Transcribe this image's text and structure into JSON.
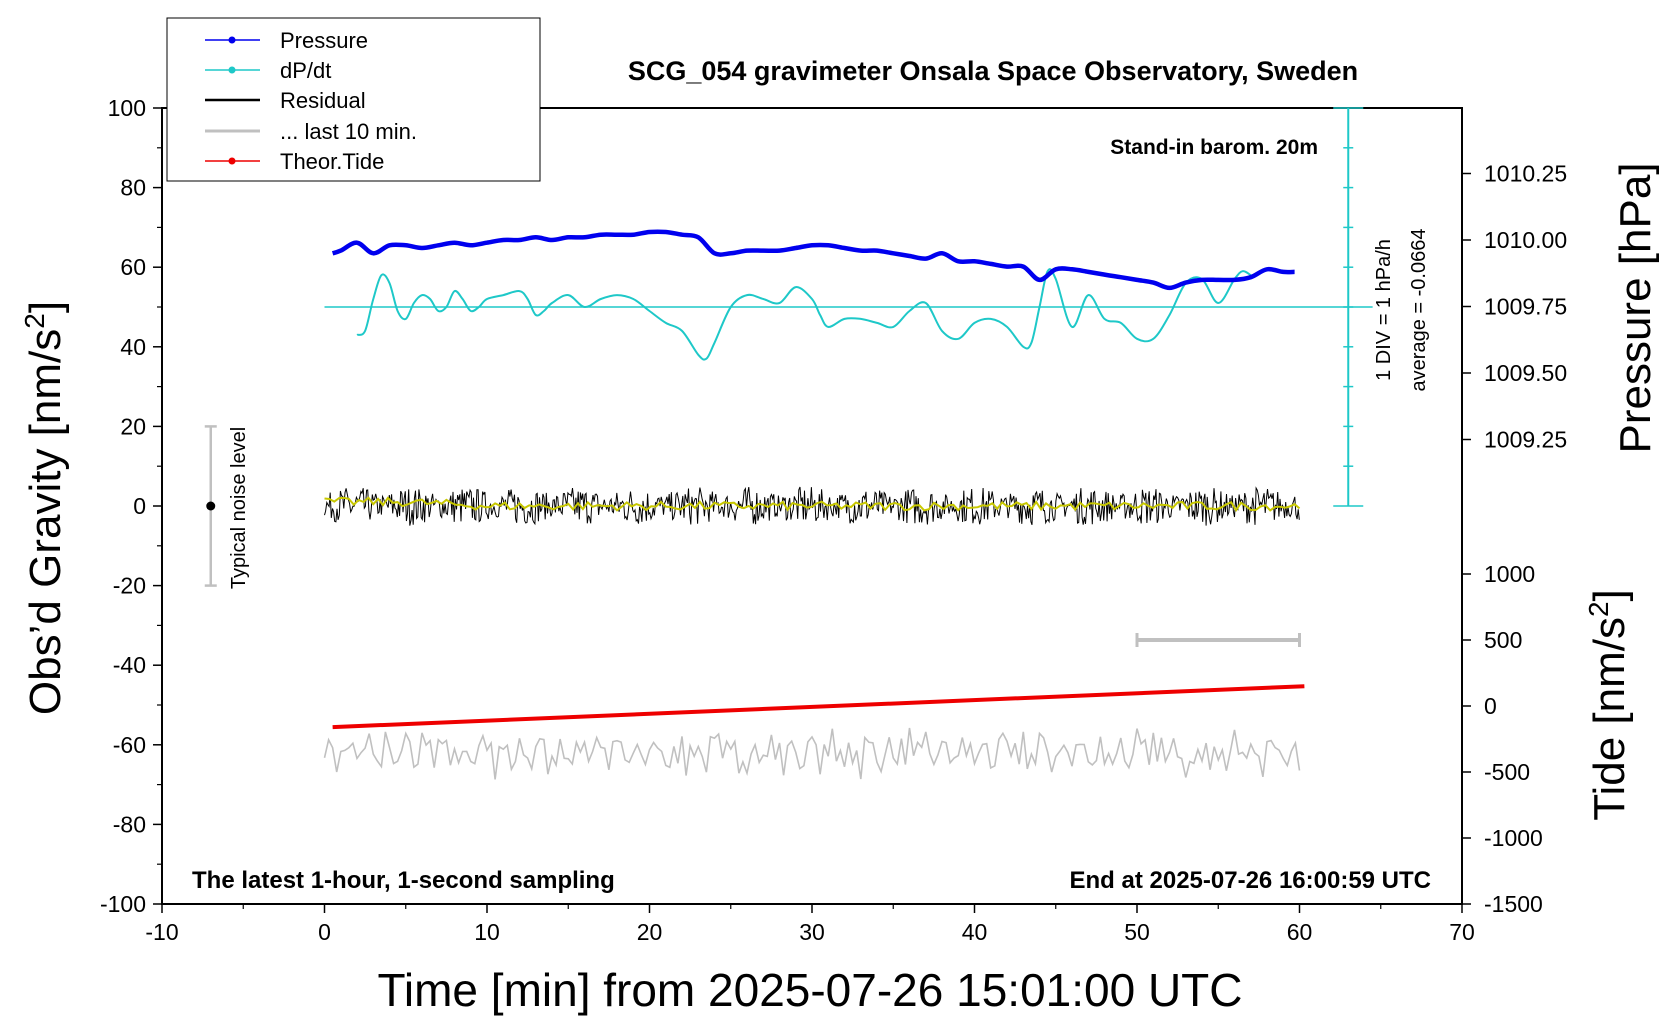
{
  "chart_data": {
    "type": "line",
    "title": "SCG_054 gravimeter Onsala Space Observatory, Sweden",
    "xlabel": "Time [min] from 2025-07-26 15:01:00 UTC",
    "ylabel_left": "Obs’d Gravity [nm/s",
    "ylabel_left_sup": "2",
    "ylabel_left_end": "]",
    "ylabel_pressure": "Pressure [hPa]",
    "ylabel_tide": "Tide [nm/s",
    "ylabel_tide_sup": "2",
    "ylabel_tide_end": "]",
    "xlim": [
      -10,
      70
    ],
    "ylim_left": [
      -100,
      100
    ],
    "pressure_lim": [
      1009.0,
      1010.5
    ],
    "tide_lim": [
      -1500,
      1500
    ],
    "grid": false,
    "legend_position": "top-left",
    "x_ticks": [
      "-10",
      "0",
      "10",
      "20",
      "30",
      "40",
      "50",
      "60",
      "70"
    ],
    "y_ticks_left": [
      "100",
      "80",
      "60",
      "40",
      "20",
      "0",
      "-20",
      "-40",
      "-60",
      "-80",
      "-100"
    ],
    "y_ticks_pressure": [
      "1010.25",
      "1010.00",
      "1009.75",
      "1009.50",
      "1009.25"
    ],
    "y_ticks_tide": [
      "1000",
      "500",
      "0",
      "-500",
      "-1000",
      "-1500"
    ],
    "annotations": {
      "barometer": "Stand-in barom. 20m",
      "bottom_left": "The latest 1-hour, 1-second sampling",
      "bottom_right": "End at 2025-07-26 16:00:59 UTC",
      "dpdt_scale": "1 DIV = 1 hPa/h",
      "dpdt_average": "average = -0.0664",
      "noise_label": "Typical noise level"
    },
    "noise_bar": {
      "x": -7,
      "center": 0,
      "low": -20,
      "high": 20
    },
    "last10_bar": {
      "x": [
        50,
        60
      ],
      "tide": 500
    },
    "series": [
      {
        "name": "Pressure",
        "color": "#0000ee",
        "axis": "pressure",
        "x": [
          0.5,
          1,
          2,
          3,
          4,
          5,
          6,
          7,
          8,
          9,
          10,
          11,
          12,
          13,
          14,
          15,
          16,
          17,
          18,
          19,
          20,
          21,
          22,
          23,
          24,
          25,
          26,
          27,
          28,
          29,
          30,
          31,
          32,
          33,
          34,
          35,
          36,
          37,
          38,
          39,
          40,
          41,
          42,
          43,
          44,
          45,
          46,
          47,
          48,
          49,
          50,
          51,
          52,
          53,
          54,
          55,
          56,
          57,
          58,
          59,
          59.7
        ],
        "values": [
          1009.95,
          1009.96,
          1009.99,
          1009.95,
          1009.98,
          1009.98,
          1009.97,
          1009.98,
          1009.99,
          1009.98,
          1009.99,
          1010.0,
          1010.0,
          1010.01,
          1010.0,
          1010.01,
          1010.01,
          1010.02,
          1010.02,
          1010.02,
          1010.03,
          1010.03,
          1010.02,
          1010.01,
          1009.95,
          1009.95,
          1009.96,
          1009.96,
          1009.96,
          1009.97,
          1009.98,
          1009.98,
          1009.97,
          1009.96,
          1009.96,
          1009.95,
          1009.94,
          1009.93,
          1009.95,
          1009.92,
          1009.92,
          1009.91,
          1009.9,
          1009.9,
          1009.85,
          1009.89,
          1009.89,
          1009.88,
          1009.87,
          1009.86,
          1009.85,
          1009.84,
          1009.82,
          1009.84,
          1009.85,
          1009.85,
          1009.85,
          1009.86,
          1009.89,
          1009.88,
          1009.88
        ]
      },
      {
        "name": "dP/dt",
        "color": "#1ec8c8",
        "axis": "left",
        "reference_line": 50,
        "x": [
          2,
          2.5,
          3,
          3.5,
          4,
          4.5,
          5,
          5.5,
          6,
          6.5,
          7,
          7.5,
          8,
          8.5,
          9,
          9.5,
          10,
          11,
          12,
          12.5,
          13,
          13.5,
          14,
          15,
          16,
          17,
          18,
          19,
          20,
          21,
          22,
          23,
          23.5,
          24,
          25,
          26,
          27,
          28,
          29,
          30,
          30.5,
          31,
          32,
          33,
          34,
          35,
          36,
          37,
          38,
          39,
          40,
          41,
          42,
          43,
          43.5,
          44,
          44.5,
          45,
          46,
          47,
          48,
          49,
          50,
          51,
          52,
          53,
          54,
          55,
          56,
          56.5,
          57
        ],
        "values": [
          43,
          44,
          52,
          58,
          56,
          49,
          47,
          51,
          53,
          52,
          49,
          50,
          54,
          52,
          49,
          50,
          52,
          53,
          54,
          52,
          48,
          49,
          51,
          53,
          50,
          52,
          53,
          52,
          49,
          46,
          44,
          38,
          37,
          41,
          50,
          53,
          52,
          51,
          55,
          52,
          48,
          45,
          47,
          47,
          46,
          45,
          49,
          51,
          44,
          42,
          46,
          47,
          45,
          40,
          41,
          50,
          59,
          57,
          45,
          53,
          47,
          46,
          42,
          42,
          48,
          56,
          57,
          51,
          57,
          59,
          58
        ]
      },
      {
        "name": "Residual",
        "color": "#000000",
        "axis": "left",
        "x_range": [
          0,
          60
        ],
        "center": 0,
        "noise_amplitude": 4.5,
        "peak_min": -9,
        "peak_max": 9
      },
      {
        "name": "Residual (smoothed)",
        "color": "#c8c800",
        "axis": "left",
        "x": [
          0,
          5,
          10,
          15,
          20,
          25,
          30,
          35,
          40,
          45,
          50,
          55,
          60
        ],
        "values": [
          1,
          1,
          0,
          0,
          0,
          0,
          0,
          0,
          0,
          0,
          0,
          0,
          0
        ]
      },
      {
        "name": "... last 10 min.",
        "color": "#c0c0c0",
        "axis": "left",
        "x_range": [
          0,
          60
        ],
        "center": -62,
        "noise_amplitude": 4,
        "peak_min": -70,
        "peak_max": -52
      },
      {
        "name": "Theor.Tide",
        "color": "#ee0000",
        "axis": "tide",
        "x": [
          0.5,
          60.3
        ],
        "values": [
          -160,
          150
        ]
      }
    ]
  }
}
